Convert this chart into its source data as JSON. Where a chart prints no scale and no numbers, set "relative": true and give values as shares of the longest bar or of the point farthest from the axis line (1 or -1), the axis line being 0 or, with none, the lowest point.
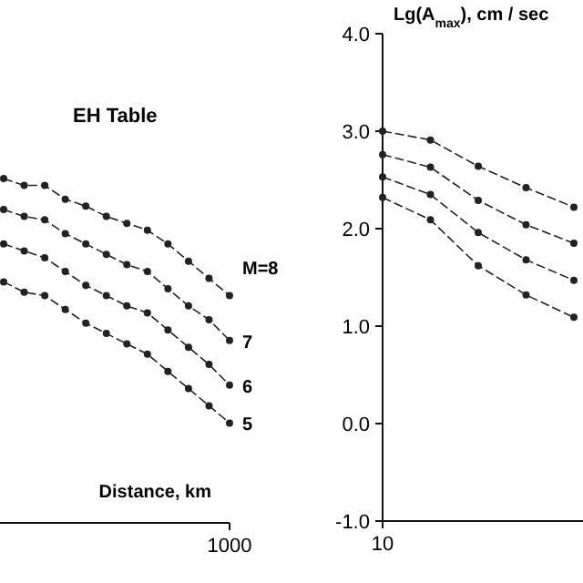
{
  "chart_data": [
    {
      "type": "line",
      "title": "EH Table",
      "xlabel": "Distance, km",
      "relative": true,
      "marker": "circle",
      "line_style": "dashed",
      "annotations": [
        "1000"
      ],
      "categories": [
        null,
        null,
        null,
        null,
        null,
        null,
        null,
        null,
        null,
        null,
        null,
        null
      ],
      "series": [
        {
          "name": "M=8",
          "color": "#222222",
          "values": [
            1.0,
            0.98,
            0.98,
            0.94,
            0.92,
            0.89,
            0.87,
            0.85,
            0.81,
            0.76,
            0.71,
            0.66
          ]
        },
        {
          "name": "7",
          "color": "#222222",
          "values": [
            0.91,
            0.89,
            0.88,
            0.84,
            0.81,
            0.78,
            0.75,
            0.73,
            0.68,
            0.63,
            0.59,
            0.53
          ]
        },
        {
          "name": "6",
          "color": "#222222",
          "values": [
            0.81,
            0.79,
            0.77,
            0.73,
            0.69,
            0.66,
            0.63,
            0.61,
            0.56,
            0.51,
            0.46,
            0.4
          ]
        },
        {
          "name": "5",
          "color": "#222222",
          "values": [
            0.7,
            0.67,
            0.66,
            0.62,
            0.58,
            0.55,
            0.52,
            0.49,
            0.44,
            0.39,
            0.34,
            0.29
          ]
        }
      ]
    },
    {
      "type": "line",
      "ylabel": "Lg(A$_{max}$), cm / sec",
      "marker": "circle",
      "line_style": "dashed",
      "annotations": [
        "10"
      ],
      "ylim": [
        -1,
        4
      ],
      "yticks": [
        {
          "value": -1,
          "label": "-1.0"
        },
        {
          "value": 0,
          "label": "0.0"
        },
        {
          "value": 1,
          "label": "1.0"
        },
        {
          "value": 2,
          "label": "2.0"
        },
        {
          "value": 3,
          "label": "3.0"
        },
        {
          "value": 4,
          "label": "4.0"
        }
      ],
      "categories": [
        null,
        null,
        null,
        null,
        null
      ],
      "series": [
        {
          "color": "#222222",
          "values": [
            3.0,
            2.91,
            2.64,
            2.42,
            2.22
          ]
        },
        {
          "color": "#222222",
          "values": [
            2.76,
            2.63,
            2.29,
            2.04,
            1.85
          ]
        },
        {
          "color": "#222222",
          "values": [
            2.53,
            2.35,
            1.96,
            1.68,
            1.47
          ]
        },
        {
          "color": "#222222",
          "values": [
            2.32,
            2.09,
            1.62,
            1.32,
            1.09
          ]
        }
      ]
    }
  ]
}
